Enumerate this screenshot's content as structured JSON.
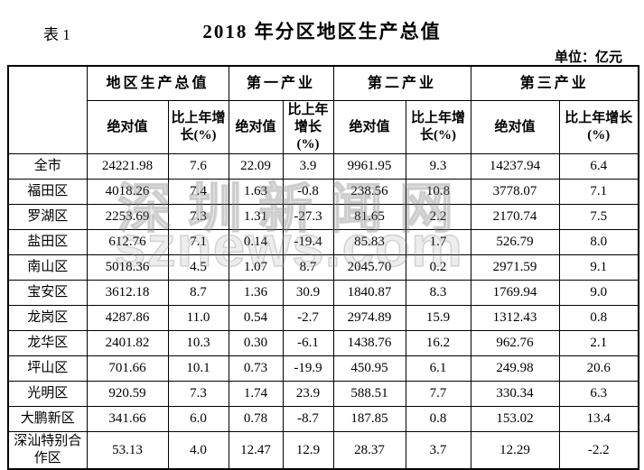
{
  "page": {
    "table_label": "表 1",
    "title": "2018 年分区地区生产总值",
    "unit_note": "单位：亿元"
  },
  "watermark": {
    "line1": "深圳新闻网",
    "line2": "sznews.com"
  },
  "table": {
    "type": "table",
    "corner_label": "",
    "group_headers": [
      "地区生产总值",
      "第一产业",
      "第二产业",
      "第三产业"
    ],
    "sub_value_label": "绝对值",
    "sub_growth_label": "比上年增长(%)",
    "rows": [
      {
        "name": "全市",
        "values": [
          "24221.98",
          "7.6",
          "22.09",
          "3.9",
          "9961.95",
          "9.3",
          "14237.94",
          "6.4"
        ]
      },
      {
        "name": "福田区",
        "values": [
          "4018.26",
          "7.4",
          "1.63",
          "-0.8",
          "238.56",
          "10.8",
          "3778.07",
          "7.1"
        ]
      },
      {
        "name": "罗湖区",
        "values": [
          "2253.69",
          "7.3",
          "1.31",
          "-27.3",
          "81.65",
          "2.2",
          "2170.74",
          "7.5"
        ]
      },
      {
        "name": "盐田区",
        "values": [
          "612.76",
          "7.1",
          "0.14",
          "-19.4",
          "85.83",
          "1.7",
          "526.79",
          "8.0"
        ]
      },
      {
        "name": "南山区",
        "values": [
          "5018.36",
          "4.5",
          "1.07",
          "8.7",
          "2045.70",
          "0.2",
          "2971.59",
          "9.1"
        ]
      },
      {
        "name": "宝安区",
        "values": [
          "3612.18",
          "8.7",
          "1.36",
          "30.9",
          "1840.87",
          "8.3",
          "1769.94",
          "9.0"
        ]
      },
      {
        "name": "龙岗区",
        "values": [
          "4287.86",
          "11.0",
          "0.54",
          "-2.7",
          "2974.89",
          "15.9",
          "1312.43",
          "0.8"
        ]
      },
      {
        "name": "龙华区",
        "values": [
          "2401.82",
          "10.3",
          "0.30",
          "-6.1",
          "1438.76",
          "16.2",
          "962.76",
          "2.1"
        ]
      },
      {
        "name": "坪山区",
        "values": [
          "701.66",
          "10.1",
          "0.73",
          "-19.9",
          "450.95",
          "6.1",
          "249.98",
          "20.6"
        ]
      },
      {
        "name": "光明区",
        "values": [
          "920.59",
          "7.3",
          "1.74",
          "23.9",
          "588.51",
          "7.7",
          "330.34",
          "6.3"
        ]
      },
      {
        "name": "大鹏新区",
        "values": [
          "341.66",
          "6.0",
          "0.78",
          "-8.7",
          "187.85",
          "0.8",
          "153.02",
          "13.4"
        ]
      },
      {
        "name": "深汕特别合作区",
        "values": [
          "53.13",
          "4.0",
          "12.47",
          "12.9",
          "28.37",
          "3.7",
          "12.29",
          "-2.2"
        ]
      }
    ]
  }
}
